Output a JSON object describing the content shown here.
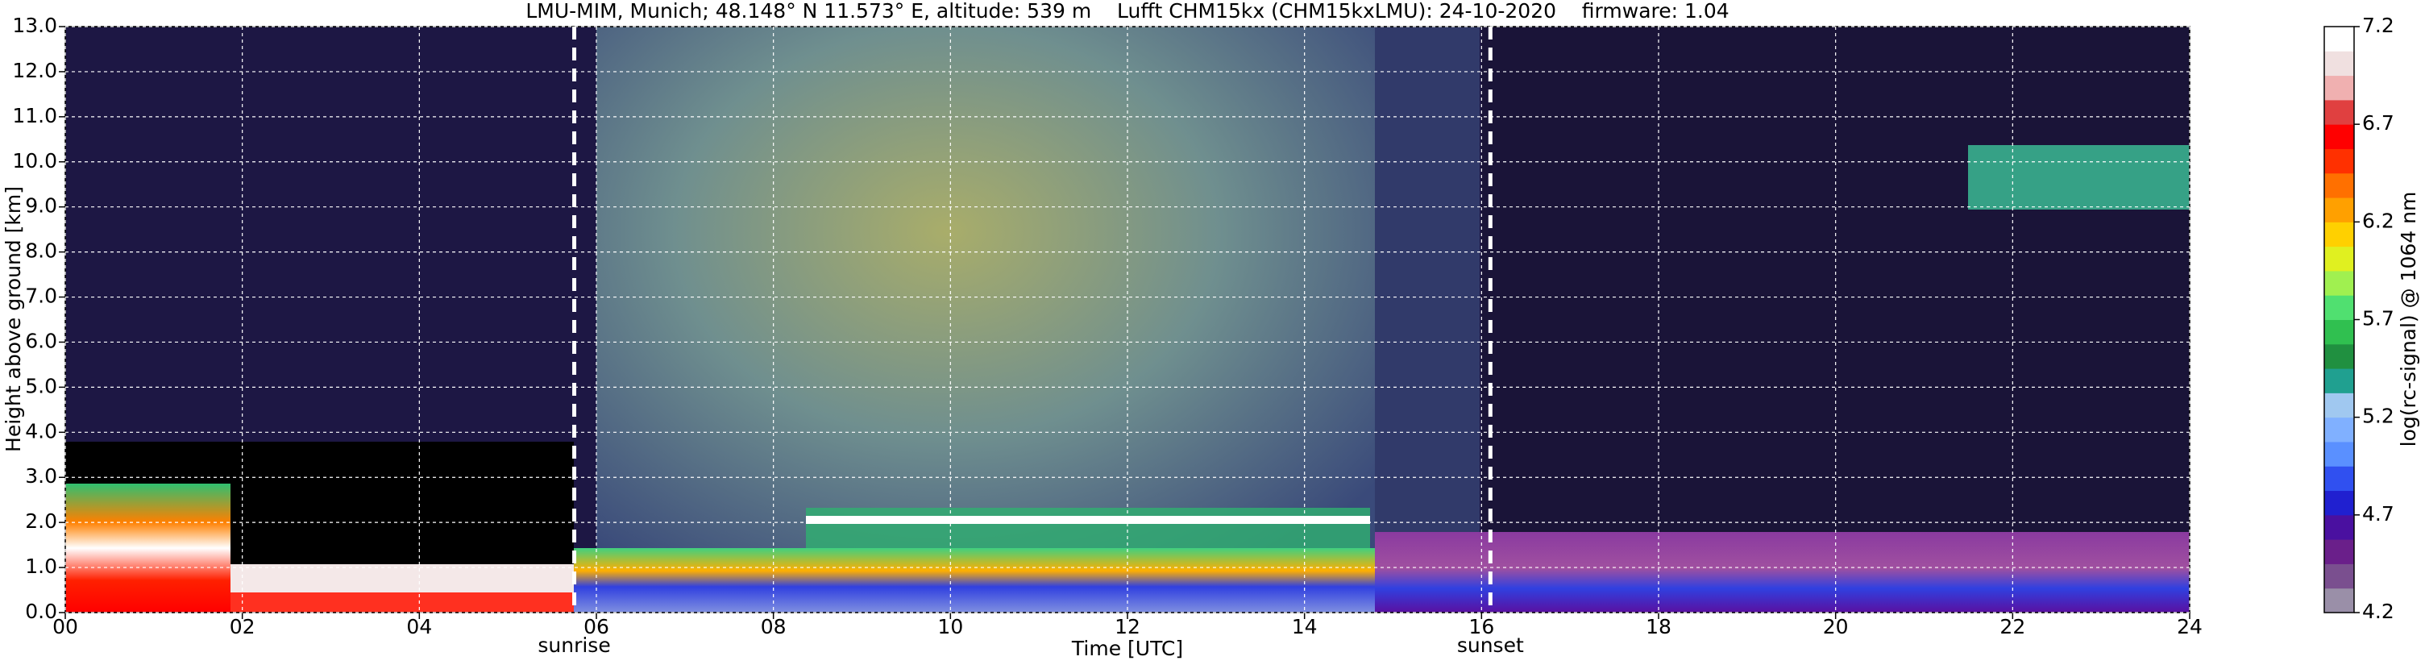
{
  "chart_data": {
    "type": "heatmap",
    "title": "LMU-MIM, Munich; 48.148° N 11.573° E, altitude: 539 m    Lufft CHM15kx (CHM15kxLMU): 24-10-2020    firmware: 1.04",
    "xlabel": "Time [UTC]",
    "ylabel": "Height above ground [km]",
    "xlim": [
      0,
      24
    ],
    "ylim": [
      0,
      13
    ],
    "xticks": [
      {
        "value": 0,
        "label": "00"
      },
      {
        "value": 2,
        "label": "02"
      },
      {
        "value": 4,
        "label": "04"
      },
      {
        "value": 6,
        "label": "06"
      },
      {
        "value": 8,
        "label": "08"
      },
      10,
      12,
      14,
      16,
      18,
      20,
      22,
      24
    ],
    "yticks": [
      {
        "value": 0,
        "label": "0.0"
      },
      {
        "value": 1,
        "label": "1.0"
      },
      {
        "value": 2,
        "label": "2.0"
      },
      {
        "value": 3,
        "label": "3.0"
      },
      {
        "value": 4,
        "label": "4.0"
      },
      {
        "value": 5,
        "label": "5.0"
      },
      {
        "value": 6,
        "label": "6.0"
      },
      {
        "value": 7,
        "label": "7.0"
      },
      {
        "value": 8,
        "label": "8.0"
      },
      {
        "value": 9,
        "label": "9.0"
      },
      {
        "value": 10,
        "label": "10.0"
      },
      {
        "value": 11,
        "label": "11.0"
      },
      {
        "value": 12,
        "label": "12.0"
      },
      {
        "value": 13,
        "label": "13.0"
      }
    ],
    "grid": true,
    "annotations": [
      {
        "label": "sunrise",
        "x": 5.75
      },
      {
        "label": "sunset",
        "x": 16.1
      }
    ],
    "colorbar": {
      "label": "log(rc-signal) @ 1064 nm",
      "clim": [
        4.2,
        7.2
      ],
      "ticks": [
        4.2,
        4.7,
        5.2,
        5.7,
        6.2,
        6.7,
        7.2
      ],
      "colors": [
        "#9a8fa8",
        "#7a4f8f",
        "#6a1f8a",
        "#4a10a0",
        "#2020d0",
        "#3050f0",
        "#5a90ff",
        "#80b0ff",
        "#a0c8f0",
        "#20a090",
        "#209040",
        "#30c050",
        "#50e070",
        "#a0f050",
        "#e0f020",
        "#ffd000",
        "#ffa000",
        "#ff7000",
        "#ff3000",
        "#ff0000",
        "#e04040",
        "#f0b0b0",
        "#f0e0e0",
        "#ffffff"
      ]
    }
  }
}
